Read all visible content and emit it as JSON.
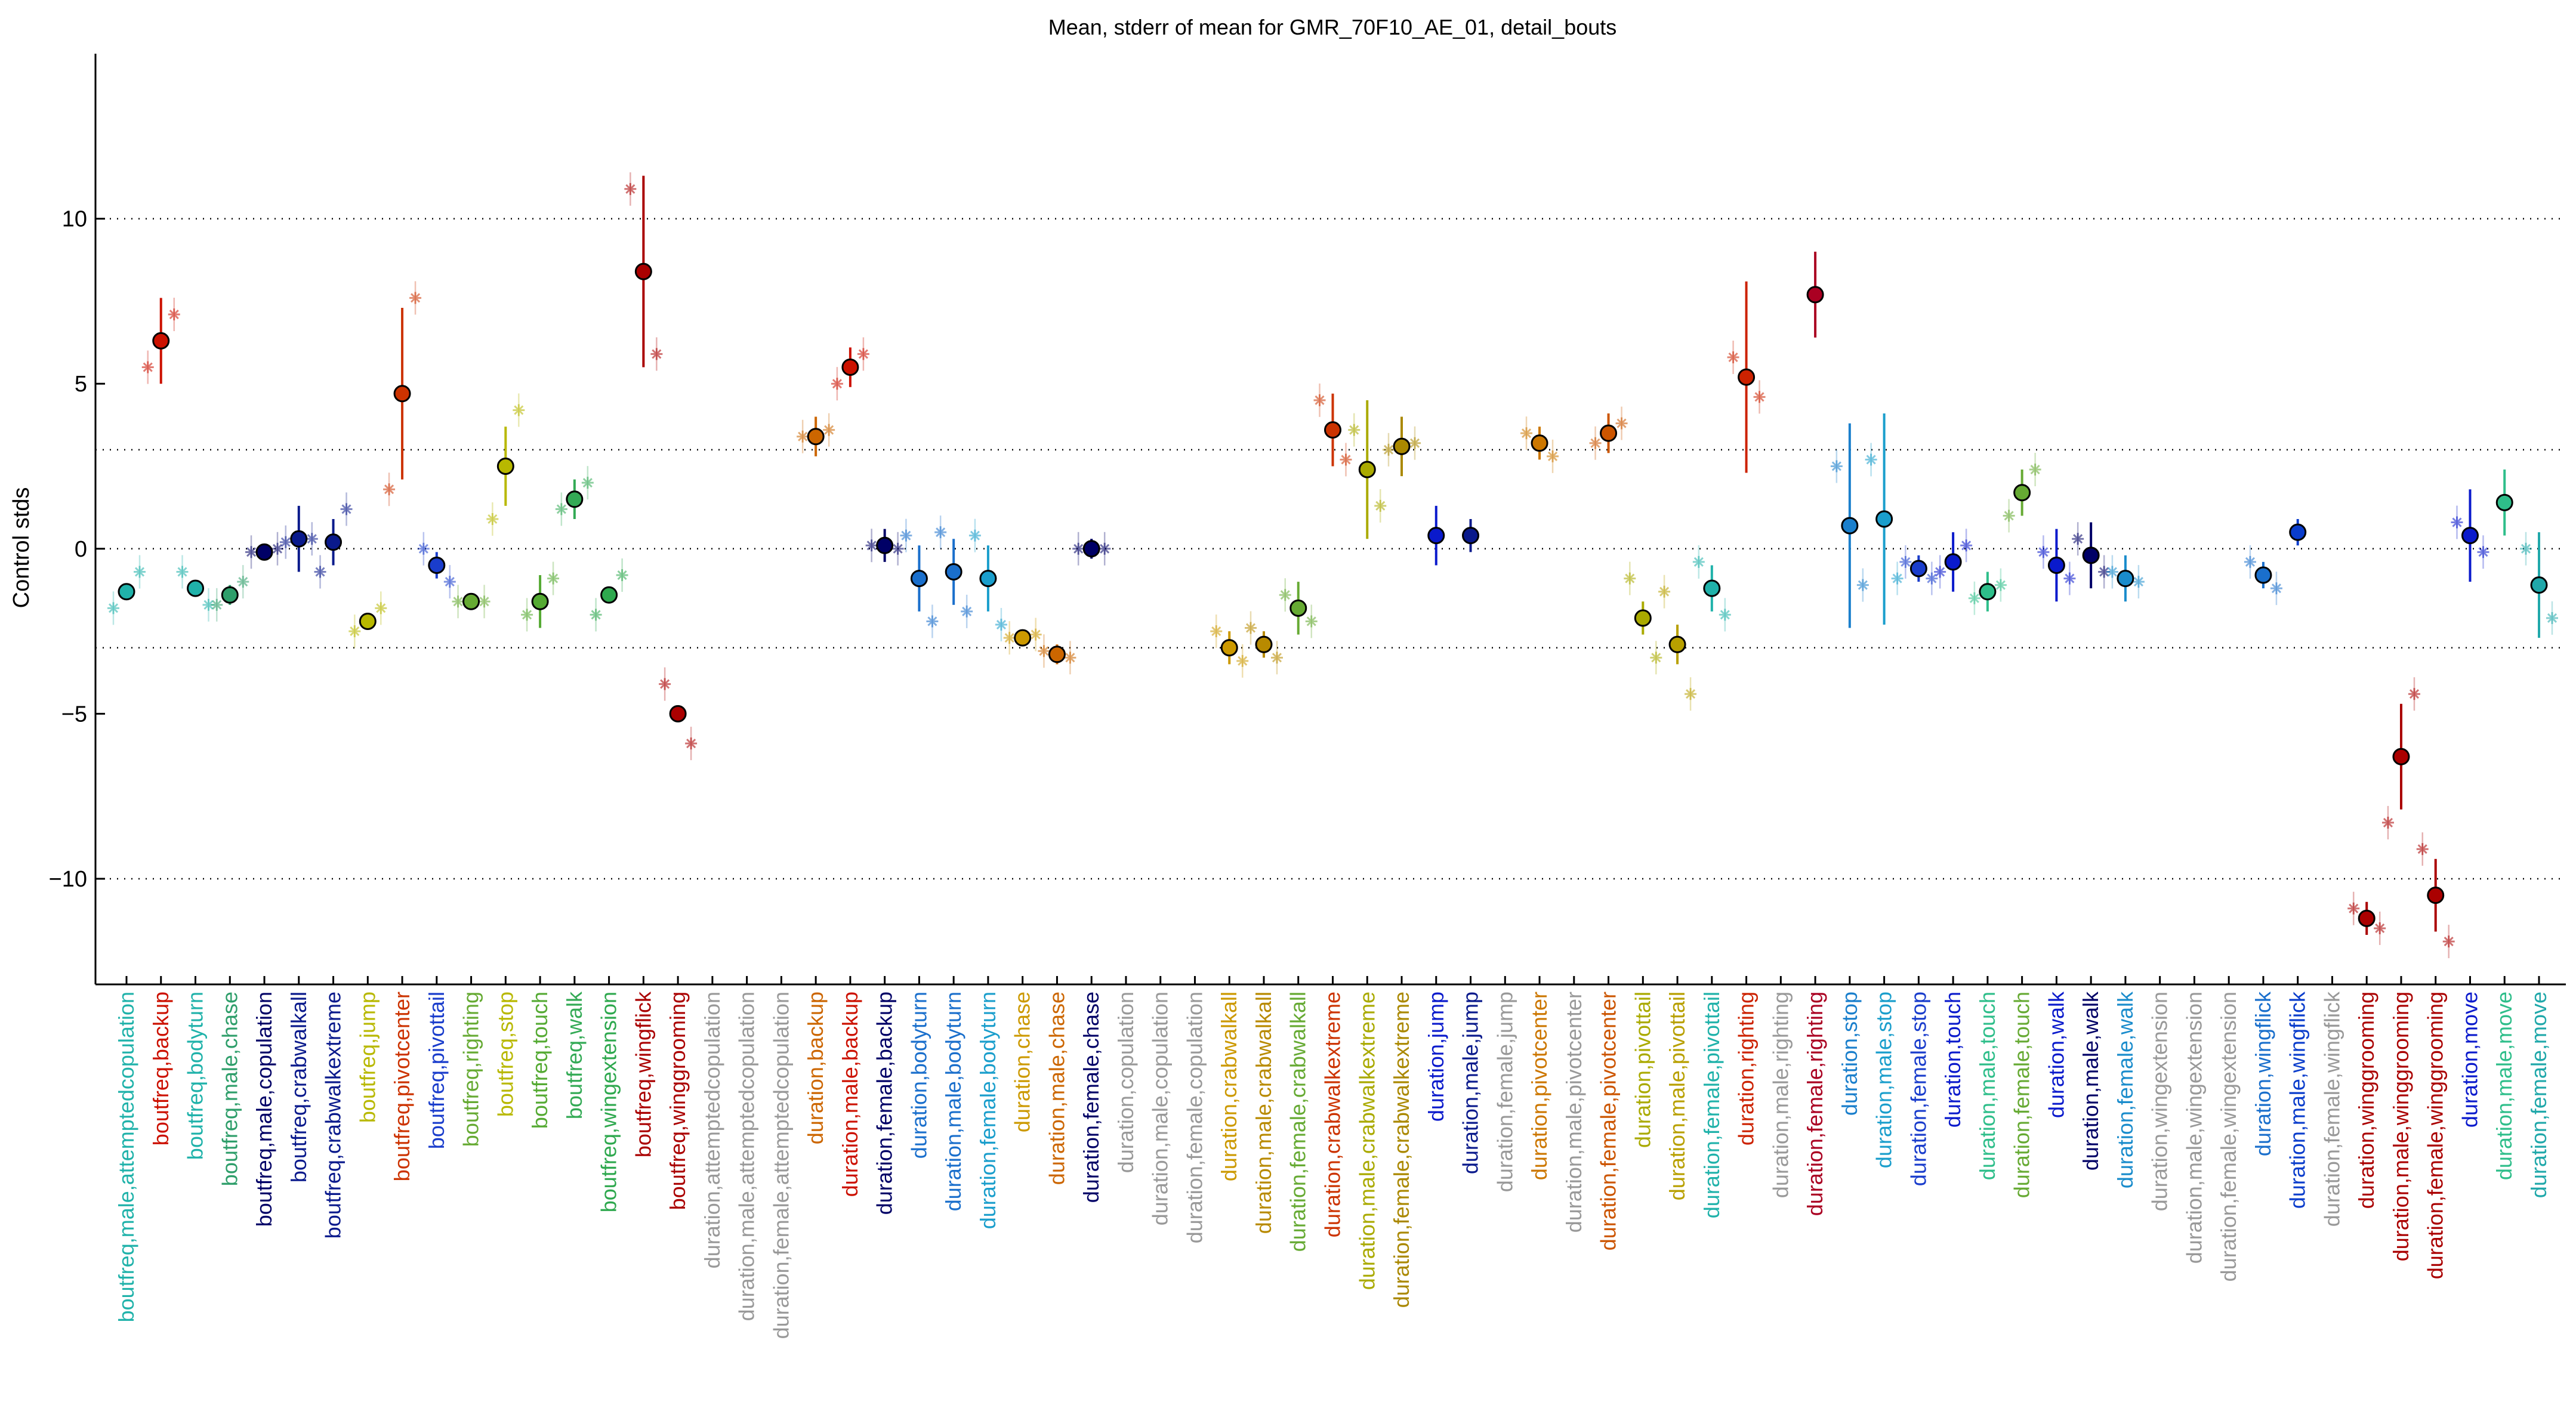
{
  "chart_data": {
    "type": "scatter",
    "title": "Mean, stderr of mean for GMR_70F10_AE_01, detail_bouts",
    "ylabel": "Control stds",
    "ylim": [
      -13.2,
      15
    ],
    "yticks": [
      -10,
      -5,
      0,
      5,
      10
    ],
    "yticklabels": [
      "−10",
      "−5",
      "0",
      "5",
      "10"
    ],
    "reference_lines": [
      10,
      3,
      0,
      -3,
      -10
    ],
    "grid": false,
    "legend": "none",
    "categories": [
      {
        "label": "boutfreq,male,attemptedcopulation",
        "color": "#20b2aa",
        "mean": -1.3,
        "err": 0.2,
        "ctrl": [
          -1.8,
          -0.7
        ]
      },
      {
        "label": "boutfreq,backup",
        "color": "#cc1100",
        "mean": 6.3,
        "err": 1.3,
        "ctrl": [
          5.5,
          7.1
        ]
      },
      {
        "label": "boutfreq,bodyturn",
        "color": "#20b2aa",
        "mean": -1.2,
        "err": 0.2,
        "ctrl": [
          -0.7,
          -1.7
        ]
      },
      {
        "label": "boutfreq,male,chase",
        "color": "#2e9e6a",
        "mean": -1.4,
        "err": 0.3,
        "ctrl": [
          -1.7,
          -1.0
        ]
      },
      {
        "label": "boutfreq,male,copulation",
        "color": "#000066",
        "mean": -0.1,
        "err": 0.1,
        "ctrl": [
          -0.1,
          0.0
        ]
      },
      {
        "label": "boutfreq,crabwalkall",
        "color": "#0a1a8c",
        "mean": 0.3,
        "err": 1.0,
        "ctrl": [
          0.2,
          0.3
        ]
      },
      {
        "label": "boutfreq,crabwalkextreme",
        "color": "#0a1a8c",
        "mean": 0.2,
        "err": 0.7,
        "ctrl": [
          -0.7,
          1.2
        ]
      },
      {
        "label": "boutfreq,jump",
        "color": "#b8b800",
        "mean": -2.2,
        "err": 0.2,
        "ctrl": [
          -2.5,
          -1.8
        ]
      },
      {
        "label": "boutfreq,pivotcenter",
        "color": "#cc3300",
        "mean": 4.7,
        "err": 2.6,
        "ctrl": [
          1.8,
          7.6
        ]
      },
      {
        "label": "boutfreq,pivottail",
        "color": "#1a3dcc",
        "mean": -0.5,
        "err": 0.4,
        "ctrl": [
          0.0,
          -1.0
        ]
      },
      {
        "label": "boutfreq,righting",
        "color": "#66aa33",
        "mean": -1.6,
        "err": 0.1,
        "ctrl": [
          -1.6,
          -1.6
        ]
      },
      {
        "label": "boutfreq,stop",
        "color": "#b8b800",
        "mean": 2.5,
        "err": 1.2,
        "ctrl": [
          0.9,
          4.2
        ]
      },
      {
        "label": "boutfreq,touch",
        "color": "#55aa33",
        "mean": -1.6,
        "err": 0.8,
        "ctrl": [
          -2.0,
          -0.9
        ]
      },
      {
        "label": "boutfreq,walk",
        "color": "#33aa55",
        "mean": 1.5,
        "err": 0.6,
        "ctrl": [
          1.2,
          2.0
        ]
      },
      {
        "label": "boutfreq,wingextension",
        "color": "#2ea84e",
        "mean": -1.4,
        "err": 0.2,
        "ctrl": [
          -2.0,
          -0.8
        ]
      },
      {
        "label": "boutfreq,wingflick",
        "color": "#aa0000",
        "mean": 8.4,
        "err": 2.9,
        "ctrl": [
          10.9,
          5.9
        ]
      },
      {
        "label": "boutfreq,winggrooming",
        "color": "#aa0000",
        "mean": -5.0,
        "err": 0.2,
        "ctrl": [
          -4.1,
          -5.9
        ]
      },
      {
        "label": "duration,attemptedcopulation",
        "color": "#999999",
        "mean": null,
        "err": null,
        "ctrl": []
      },
      {
        "label": "duration,male,attemptedcopulation",
        "color": "#999999",
        "mean": null,
        "err": null,
        "ctrl": []
      },
      {
        "label": "duration,female,attemptedcopulation",
        "color": "#999999",
        "mean": null,
        "err": null,
        "ctrl": []
      },
      {
        "label": "duration,backup",
        "color": "#cc6600",
        "mean": 3.4,
        "err": 0.6,
        "ctrl": [
          3.4,
          3.6
        ]
      },
      {
        "label": "duration,male,backup",
        "color": "#cc1100",
        "mean": 5.5,
        "err": 0.6,
        "ctrl": [
          5.0,
          5.9
        ]
      },
      {
        "label": "duration,female,backup",
        "color": "#000066",
        "mean": 0.1,
        "err": 0.5,
        "ctrl": [
          0.1,
          0.0
        ]
      },
      {
        "label": "duration,bodyturn",
        "color": "#1a6fcc",
        "mean": -0.9,
        "err": 1.0,
        "ctrl": [
          0.4,
          -2.2
        ]
      },
      {
        "label": "duration,male,bodyturn",
        "color": "#1a6fcc",
        "mean": -0.7,
        "err": 1.0,
        "ctrl": [
          0.5,
          -1.9
        ]
      },
      {
        "label": "duration,female,bodyturn",
        "color": "#1a9ecc",
        "mean": -0.9,
        "err": 1.0,
        "ctrl": [
          0.4,
          -2.3
        ]
      },
      {
        "label": "duration,chase",
        "color": "#cc9900",
        "mean": -2.7,
        "err": 0.2,
        "ctrl": [
          -2.7,
          -2.6
        ]
      },
      {
        "label": "duration,male,chase",
        "color": "#cc6600",
        "mean": -3.2,
        "err": 0.3,
        "ctrl": [
          -3.1,
          -3.3
        ]
      },
      {
        "label": "duration,female,chase",
        "color": "#000066",
        "mean": 0.0,
        "err": 0.3,
        "ctrl": [
          0.0,
          0.0
        ]
      },
      {
        "label": "duration,copulation",
        "color": "#999999",
        "mean": null,
        "err": null,
        "ctrl": []
      },
      {
        "label": "duration,male,copulation",
        "color": "#999999",
        "mean": null,
        "err": null,
        "ctrl": []
      },
      {
        "label": "duration,female,copulation",
        "color": "#999999",
        "mean": null,
        "err": null,
        "ctrl": []
      },
      {
        "label": "duration,crabwalkall",
        "color": "#cc9900",
        "mean": -3.0,
        "err": 0.5,
        "ctrl": [
          -2.5,
          -3.4
        ]
      },
      {
        "label": "duration,male,crabwalkall",
        "color": "#b88a00",
        "mean": -2.9,
        "err": 0.4,
        "ctrl": [
          -2.4,
          -3.3
        ]
      },
      {
        "label": "duration,female,crabwalkall",
        "color": "#66aa33",
        "mean": -1.8,
        "err": 0.8,
        "ctrl": [
          -1.4,
          -2.2
        ]
      },
      {
        "label": "duration,crabwalkextreme",
        "color": "#cc3300",
        "mean": 3.6,
        "err": 1.1,
        "ctrl": [
          4.5,
          2.7
        ]
      },
      {
        "label": "duration,male,crabwalkextreme",
        "color": "#aaaa00",
        "mean": 2.4,
        "err": 2.1,
        "ctrl": [
          3.6,
          1.3
        ]
      },
      {
        "label": "duration,female,crabwalkextreme",
        "color": "#aa8800",
        "mean": 3.1,
        "err": 0.9,
        "ctrl": [
          3.0,
          3.2
        ]
      },
      {
        "label": "duration,jump",
        "color": "#0a1acc",
        "mean": 0.4,
        "err": 0.9,
        "ctrl": []
      },
      {
        "label": "duration,male,jump",
        "color": "#0a1a8c",
        "mean": 0.4,
        "err": 0.5,
        "ctrl": []
      },
      {
        "label": "duration,female,jump",
        "color": "#999999",
        "mean": null,
        "err": null,
        "ctrl": []
      },
      {
        "label": "duration,pivotcenter",
        "color": "#cc7700",
        "mean": 3.2,
        "err": 0.5,
        "ctrl": [
          3.5,
          2.8
        ]
      },
      {
        "label": "duration,male,pivotcenter",
        "color": "#999999",
        "mean": null,
        "err": null,
        "ctrl": []
      },
      {
        "label": "duration,female,pivotcenter",
        "color": "#cc5500",
        "mean": 3.5,
        "err": 0.6,
        "ctrl": [
          3.2,
          3.8
        ]
      },
      {
        "label": "duration,pivottail",
        "color": "#aaaa00",
        "mean": -2.1,
        "err": 0.5,
        "ctrl": [
          -0.9,
          -3.3
        ]
      },
      {
        "label": "duration,male,pivottail",
        "color": "#b8a000",
        "mean": -2.9,
        "err": 0.6,
        "ctrl": [
          -1.3,
          -4.4
        ]
      },
      {
        "label": "duration,female,pivottail",
        "color": "#20b2aa",
        "mean": -1.2,
        "err": 0.7,
        "ctrl": [
          -0.4,
          -2.0
        ]
      },
      {
        "label": "duration,righting",
        "color": "#cc2200",
        "mean": 5.2,
        "err": 2.9,
        "ctrl": [
          5.8,
          4.6
        ]
      },
      {
        "label": "duration,male,righting",
        "color": "#999999",
        "mean": null,
        "err": null,
        "ctrl": []
      },
      {
        "label": "duration,female,righting",
        "color": "#aa0022",
        "mean": 7.7,
        "err": 1.3,
        "ctrl": []
      },
      {
        "label": "duration,stop",
        "color": "#1a7fcc",
        "mean": 0.7,
        "err": 3.1,
        "ctrl": [
          2.5,
          -1.1
        ]
      },
      {
        "label": "duration,male,stop",
        "color": "#1a9ecc",
        "mean": 0.9,
        "err": 3.2,
        "ctrl": [
          2.7,
          -0.9
        ]
      },
      {
        "label": "duration,female,stop",
        "color": "#1a3dcc",
        "mean": -0.6,
        "err": 0.4,
        "ctrl": [
          -0.4,
          -0.9
        ]
      },
      {
        "label": "duration,touch",
        "color": "#0a1acc",
        "mean": -0.4,
        "err": 0.9,
        "ctrl": [
          -0.7,
          0.1
        ]
      },
      {
        "label": "duration,male,touch",
        "color": "#2ebe8a",
        "mean": -1.3,
        "err": 0.6,
        "ctrl": [
          -1.5,
          -1.1
        ]
      },
      {
        "label": "duration,female,touch",
        "color": "#66aa33",
        "mean": 1.7,
        "err": 0.7,
        "ctrl": [
          1.0,
          2.4
        ]
      },
      {
        "label": "duration,walk",
        "color": "#0a1acc",
        "mean": -0.5,
        "err": 1.1,
        "ctrl": [
          -0.1,
          -0.9
        ]
      },
      {
        "label": "duration,male,walk",
        "color": "#000066",
        "mean": -0.2,
        "err": 1.0,
        "ctrl": [
          0.3,
          -0.7
        ]
      },
      {
        "label": "duration,female,walk",
        "color": "#1a8ccc",
        "mean": -0.9,
        "err": 0.7,
        "ctrl": [
          -0.7,
          -1.0
        ]
      },
      {
        "label": "duration,wingextension",
        "color": "#999999",
        "mean": null,
        "err": null,
        "ctrl": []
      },
      {
        "label": "duration,male,wingextension",
        "color": "#999999",
        "mean": null,
        "err": null,
        "ctrl": []
      },
      {
        "label": "duration,female,wingextension",
        "color": "#999999",
        "mean": null,
        "err": null,
        "ctrl": []
      },
      {
        "label": "duration,wingflick",
        "color": "#1a6fcc",
        "mean": -0.8,
        "err": 0.4,
        "ctrl": [
          -0.4,
          -1.2
        ]
      },
      {
        "label": "duration,male,wingflick",
        "color": "#0a3dcc",
        "mean": 0.5,
        "err": 0.4,
        "ctrl": []
      },
      {
        "label": "duration,female,wingflick",
        "color": "#999999",
        "mean": null,
        "err": null,
        "ctrl": []
      },
      {
        "label": "duration,winggrooming",
        "color": "#aa0000",
        "mean": -11.2,
        "err": 0.5,
        "ctrl": [
          -10.9,
          -11.5
        ]
      },
      {
        "label": "duration,male,winggrooming",
        "color": "#aa0000",
        "mean": -6.3,
        "err": 1.6,
        "ctrl": [
          -8.3,
          -4.4
        ]
      },
      {
        "label": "duration,female,winggrooming",
        "color": "#aa0000",
        "mean": -10.5,
        "err": 1.1,
        "ctrl": [
          -9.1,
          -11.9
        ]
      },
      {
        "label": "duration,move",
        "color": "#0a1acc",
        "mean": 0.4,
        "err": 1.4,
        "ctrl": [
          0.8,
          -0.1
        ]
      },
      {
        "label": "duration,male,move",
        "color": "#2ebe8a",
        "mean": 1.4,
        "err": 1.0,
        "ctrl": []
      },
      {
        "label": "duration,female,move",
        "color": "#20a8aa",
        "mean": -1.1,
        "err": 1.6,
        "ctrl": [
          0.0,
          -2.1
        ]
      }
    ]
  }
}
